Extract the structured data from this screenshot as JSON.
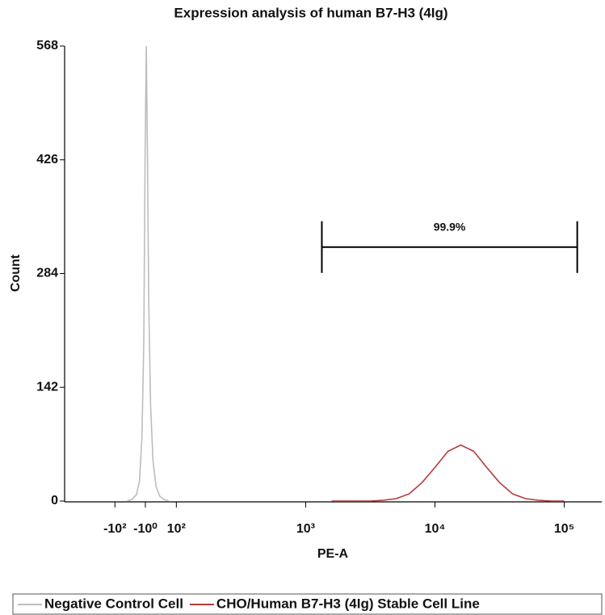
{
  "chart_data": {
    "type": "histogram-overlay",
    "title": "Expression analysis of human B7-H3 (4Ig)",
    "xlabel": "PE-A",
    "ylabel": "Count",
    "xscale": "biexponential",
    "xlim": [
      -245,
      195000
    ],
    "ylim": [
      0,
      568
    ],
    "yticks": [
      0,
      142,
      284,
      426,
      568
    ],
    "xticks": [
      {
        "value": -100,
        "label": "-10²"
      },
      {
        "value": -1,
        "label": "-10⁰"
      },
      {
        "value": 100,
        "label": "10²"
      },
      {
        "value": 1000,
        "label": "10³"
      },
      {
        "value": 10000,
        "label": "10⁴"
      },
      {
        "value": 100000,
        "label": "10⁵"
      }
    ],
    "series": [
      {
        "name": "Negative Control Cell",
        "color": "#bdbdbd",
        "x": [
          -60,
          -45,
          -30,
          -20,
          -12,
          -6,
          -2,
          2,
          6,
          10,
          16,
          24,
          34,
          46,
          60,
          75
        ],
        "values": [
          0,
          2,
          8,
          25,
          80,
          200,
          420,
          568,
          430,
          250,
          120,
          50,
          18,
          6,
          2,
          0
        ]
      },
      {
        "name": "CHO/Human B7-H3 (4Ig) Stable Cell Line",
        "color": "#b53a3a",
        "x": [
          1585,
          1995,
          2512,
          3162,
          3981,
          5012,
          6310,
          7943,
          10000,
          12589,
          15849,
          19953,
          25119,
          31623,
          39811,
          50119,
          63096,
          79433,
          100000
        ],
        "values": [
          0,
          0,
          0,
          0,
          1,
          3,
          9,
          23,
          42,
          62,
          70,
          62,
          42,
          23,
          9,
          3,
          1,
          0,
          0
        ]
      }
    ],
    "gate": {
      "label": "99.9%",
      "x": [
        1334,
        126000
      ],
      "y": 317
    }
  }
}
